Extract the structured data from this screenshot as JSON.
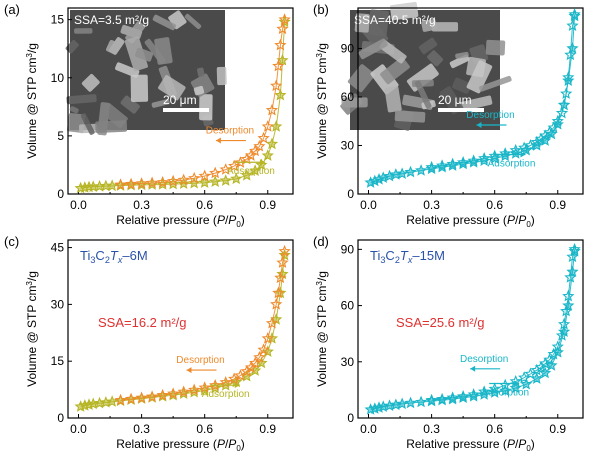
{
  "colors": {
    "desorption": "#ef8a2c",
    "adsorption": "#b6b524",
    "cyan": "#19b6c8",
    "label_blue": "#2a52a8",
    "ssa_red": "#e03030",
    "axis": "#000000"
  },
  "chart_data": [
    {
      "type": "scatter",
      "panel": "(a)",
      "xlabel": "Relative pressure (P/P0)",
      "ylabel": "Volume @ STP cm3/g",
      "xlim": [
        -0.05,
        1.02
      ],
      "ylim": [
        0,
        16
      ],
      "x_ticks": [
        0.0,
        0.3,
        0.6,
        0.9
      ],
      "x_tick_labels": [
        "0.0",
        "0.3",
        "0.6",
        "0.9"
      ],
      "y_ticks": [
        0,
        5,
        10,
        15
      ],
      "y_tick_labels": [
        "0",
        "5",
        "10",
        "15"
      ],
      "inset": {
        "ssa_text": "SSA=3.5 m²/g",
        "scale_text": "20 μm"
      },
      "annotations": {
        "desorption": "Desorption",
        "adsorption": "Adsorption"
      },
      "series": [
        {
          "name": "Adsorption",
          "color": "#b6b524",
          "x": [
            0.01,
            0.03,
            0.05,
            0.07,
            0.1,
            0.13,
            0.16,
            0.2,
            0.25,
            0.3,
            0.35,
            0.4,
            0.45,
            0.5,
            0.55,
            0.6,
            0.65,
            0.7,
            0.75,
            0.8,
            0.84,
            0.87,
            0.9,
            0.92,
            0.94,
            0.96,
            0.97,
            0.98
          ],
          "y": [
            0.5,
            0.55,
            0.6,
            0.62,
            0.65,
            0.68,
            0.7,
            0.72,
            0.75,
            0.78,
            0.8,
            0.82,
            0.85,
            0.88,
            0.92,
            0.97,
            1.05,
            1.15,
            1.3,
            1.6,
            2.0,
            2.5,
            3.3,
            4.3,
            5.8,
            8.5,
            11.5,
            14.8
          ]
        },
        {
          "name": "Desorption",
          "color": "#ef8a2c",
          "x": [
            0.98,
            0.97,
            0.96,
            0.95,
            0.94,
            0.92,
            0.9,
            0.88,
            0.86,
            0.84,
            0.82,
            0.8,
            0.77,
            0.74,
            0.7,
            0.65,
            0.6,
            0.55,
            0.5,
            0.45,
            0.4,
            0.35,
            0.3,
            0.25,
            0.2
          ],
          "y": [
            15.0,
            14.2,
            12.8,
            11.0,
            9.3,
            7.2,
            5.8,
            4.8,
            4.1,
            3.7,
            3.3,
            3.0,
            2.7,
            2.4,
            2.1,
            1.8,
            1.55,
            1.35,
            1.2,
            1.1,
            1.0,
            0.95,
            0.9,
            0.85,
            0.8
          ]
        }
      ]
    },
    {
      "type": "scatter",
      "panel": "(b)",
      "xlabel": "Relative pressure (P/P0)",
      "ylabel": "Volume @ STP cm3/g",
      "xlim": [
        -0.05,
        1.02
      ],
      "ylim": [
        0,
        115
      ],
      "x_ticks": [
        0.0,
        0.3,
        0.6,
        0.9
      ],
      "x_tick_labels": [
        "0.0",
        "0.3",
        "0.6",
        "0.9"
      ],
      "y_ticks": [
        0,
        30,
        60,
        90
      ],
      "y_tick_labels": [
        "0",
        "30",
        "60",
        "90"
      ],
      "inset": {
        "ssa_text": "SSA=40.5 m²/g",
        "scale_text": "20 μm"
      },
      "annotations": {
        "desorption": "Desorption",
        "adsorption": "Adsorption"
      },
      "series": [
        {
          "name": "Adsorption",
          "color": "#19b6c8",
          "x": [
            0.01,
            0.03,
            0.05,
            0.07,
            0.1,
            0.13,
            0.16,
            0.2,
            0.25,
            0.3,
            0.35,
            0.4,
            0.45,
            0.5,
            0.55,
            0.6,
            0.65,
            0.7,
            0.75,
            0.8,
            0.84,
            0.87,
            0.9,
            0.93,
            0.95,
            0.97,
            0.98
          ],
          "y": [
            7,
            8,
            9,
            10,
            11,
            12,
            12.5,
            13.5,
            14.5,
            15.5,
            16.5,
            17.5,
            18.5,
            19.5,
            20.5,
            22,
            23.5,
            25,
            27,
            30,
            33,
            37,
            43,
            55,
            70,
            90,
            110
          ]
        },
        {
          "name": "Desorption",
          "color": "#19b6c8",
          "x": [
            0.98,
            0.97,
            0.96,
            0.95,
            0.94,
            0.93,
            0.92,
            0.9,
            0.88,
            0.86,
            0.84,
            0.82,
            0.8,
            0.77,
            0.74,
            0.7,
            0.65,
            0.6,
            0.55,
            0.5,
            0.45,
            0.4,
            0.35,
            0.3
          ],
          "y": [
            111,
            104,
            86,
            72,
            62,
            55,
            50,
            45,
            41,
            38,
            36,
            34,
            32,
            30,
            28.5,
            27,
            25,
            23.5,
            22,
            20.5,
            19.5,
            18.5,
            17.5,
            16.5
          ]
        }
      ]
    },
    {
      "type": "scatter",
      "panel": "(c)",
      "xlabel": "Relative pressure (P/P0)",
      "ylabel": "Volume @ STP cm3/g",
      "xlim": [
        -0.05,
        1.02
      ],
      "ylim": [
        0,
        47
      ],
      "x_ticks": [
        0.0,
        0.3,
        0.6,
        0.9
      ],
      "x_tick_labels": [
        "0.0",
        "0.3",
        "0.6",
        "0.9"
      ],
      "y_ticks": [
        0,
        15,
        30,
        45
      ],
      "y_tick_labels": [
        "0",
        "15",
        "30",
        "45"
      ],
      "sample_label": "Ti3C2Tx–6M",
      "ssa_text": "SSA=16.2 m²/g",
      "annotations": {
        "desorption": "Desorption",
        "adsorption": "Adsorption"
      },
      "series": [
        {
          "name": "Adsorption",
          "color": "#b6b524",
          "x": [
            0.01,
            0.03,
            0.05,
            0.07,
            0.1,
            0.13,
            0.16,
            0.2,
            0.25,
            0.3,
            0.35,
            0.4,
            0.45,
            0.5,
            0.55,
            0.6,
            0.65,
            0.7,
            0.75,
            0.8,
            0.84,
            0.87,
            0.9,
            0.92,
            0.94,
            0.96,
            0.97,
            0.98
          ],
          "y": [
            3,
            3.3,
            3.5,
            3.7,
            3.9,
            4.1,
            4.3,
            4.5,
            4.8,
            5.1,
            5.4,
            5.7,
            6.0,
            6.4,
            6.8,
            7.3,
            7.9,
            8.6,
            9.5,
            11,
            12.5,
            14.5,
            17.5,
            21,
            26,
            33,
            38,
            43
          ]
        },
        {
          "name": "Desorption",
          "color": "#ef8a2c",
          "x": [
            0.98,
            0.97,
            0.96,
            0.95,
            0.94,
            0.92,
            0.9,
            0.88,
            0.86,
            0.84,
            0.82,
            0.8,
            0.77,
            0.74,
            0.7,
            0.65,
            0.6,
            0.55,
            0.5,
            0.45,
            0.4,
            0.35,
            0.3,
            0.25,
            0.2
          ],
          "y": [
            44,
            41,
            37,
            33,
            30,
            25,
            21,
            18,
            16,
            14.5,
            13.3,
            12.3,
            11.2,
            10.3,
            9.4,
            8.6,
            8.0,
            7.4,
            6.9,
            6.4,
            6.0,
            5.6,
            5.3,
            5.0,
            4.7
          ]
        }
      ]
    },
    {
      "type": "scatter",
      "panel": "(d)",
      "xlabel": "Relative pressure (P/P0)",
      "ylabel": "Volume @ STP cm3/g",
      "xlim": [
        -0.05,
        1.02
      ],
      "ylim": [
        0,
        95
      ],
      "x_ticks": [
        0.0,
        0.3,
        0.6,
        0.9
      ],
      "x_tick_labels": [
        "0.0",
        "0.3",
        "0.6",
        "0.9"
      ],
      "y_ticks": [
        0,
        30,
        60,
        90
      ],
      "y_tick_labels": [
        "0",
        "30",
        "60",
        "90"
      ],
      "sample_label": "Ti3C2Tx–15M",
      "ssa_text": "SSA=25.6 m²/g",
      "annotations": {
        "desorption": "Desorption",
        "adsorption": "Adsorption"
      },
      "series": [
        {
          "name": "Adsorption",
          "color": "#19b6c8",
          "x": [
            0.01,
            0.03,
            0.05,
            0.07,
            0.1,
            0.13,
            0.16,
            0.2,
            0.25,
            0.3,
            0.35,
            0.4,
            0.45,
            0.5,
            0.55,
            0.6,
            0.65,
            0.7,
            0.75,
            0.8,
            0.84,
            0.87,
            0.9,
            0.93,
            0.95,
            0.97,
            0.98
          ],
          "y": [
            4.5,
            5,
            5.5,
            6,
            6.5,
            7,
            7.5,
            8,
            8.5,
            9,
            9.5,
            10,
            10.8,
            11.5,
            12.5,
            13.5,
            14.5,
            16,
            18,
            21,
            24,
            28,
            35,
            46,
            60,
            78,
            89
          ]
        },
        {
          "name": "Desorption",
          "color": "#19b6c8",
          "x": [
            0.98,
            0.97,
            0.96,
            0.95,
            0.94,
            0.93,
            0.92,
            0.9,
            0.88,
            0.86,
            0.84,
            0.82,
            0.8,
            0.77,
            0.74,
            0.7,
            0.65,
            0.6,
            0.55,
            0.5,
            0.45,
            0.4,
            0.35,
            0.3
          ],
          "y": [
            90,
            86,
            75,
            65,
            57,
            50,
            44,
            38,
            34,
            31,
            29,
            27,
            25.5,
            23.5,
            21.5,
            19.5,
            17.5,
            15.5,
            14,
            12.5,
            11.5,
            10.8,
            10,
            9.5
          ]
        }
      ]
    }
  ]
}
